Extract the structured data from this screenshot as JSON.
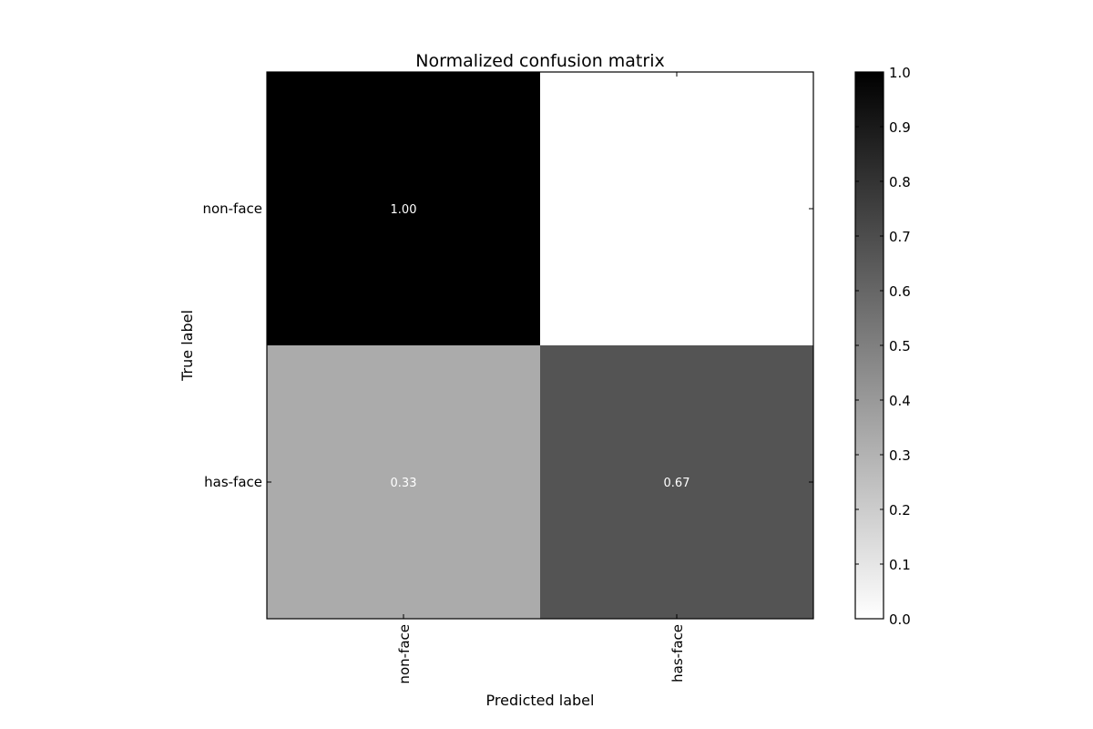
{
  "chart_data": {
    "type": "heatmap",
    "title": "Normalized confusion matrix",
    "xlabel": "Predicted label",
    "ylabel": "True label",
    "x_categories": [
      "non-face",
      "has-face"
    ],
    "y_categories": [
      "non-face",
      "has-face"
    ],
    "values": [
      [
        1.0,
        0.0
      ],
      [
        0.33,
        0.67
      ]
    ],
    "cell_labels": [
      [
        "1.00",
        ""
      ],
      [
        "0.33",
        "0.67"
      ]
    ],
    "colormap": "greys",
    "colorbar": {
      "range": [
        0.0,
        1.0
      ],
      "ticks": [
        "0.0",
        "0.1",
        "0.2",
        "0.3",
        "0.4",
        "0.5",
        "0.6",
        "0.7",
        "0.8",
        "0.9",
        "1.0"
      ],
      "low_color": "#ffffff",
      "high_color": "#000000"
    }
  }
}
